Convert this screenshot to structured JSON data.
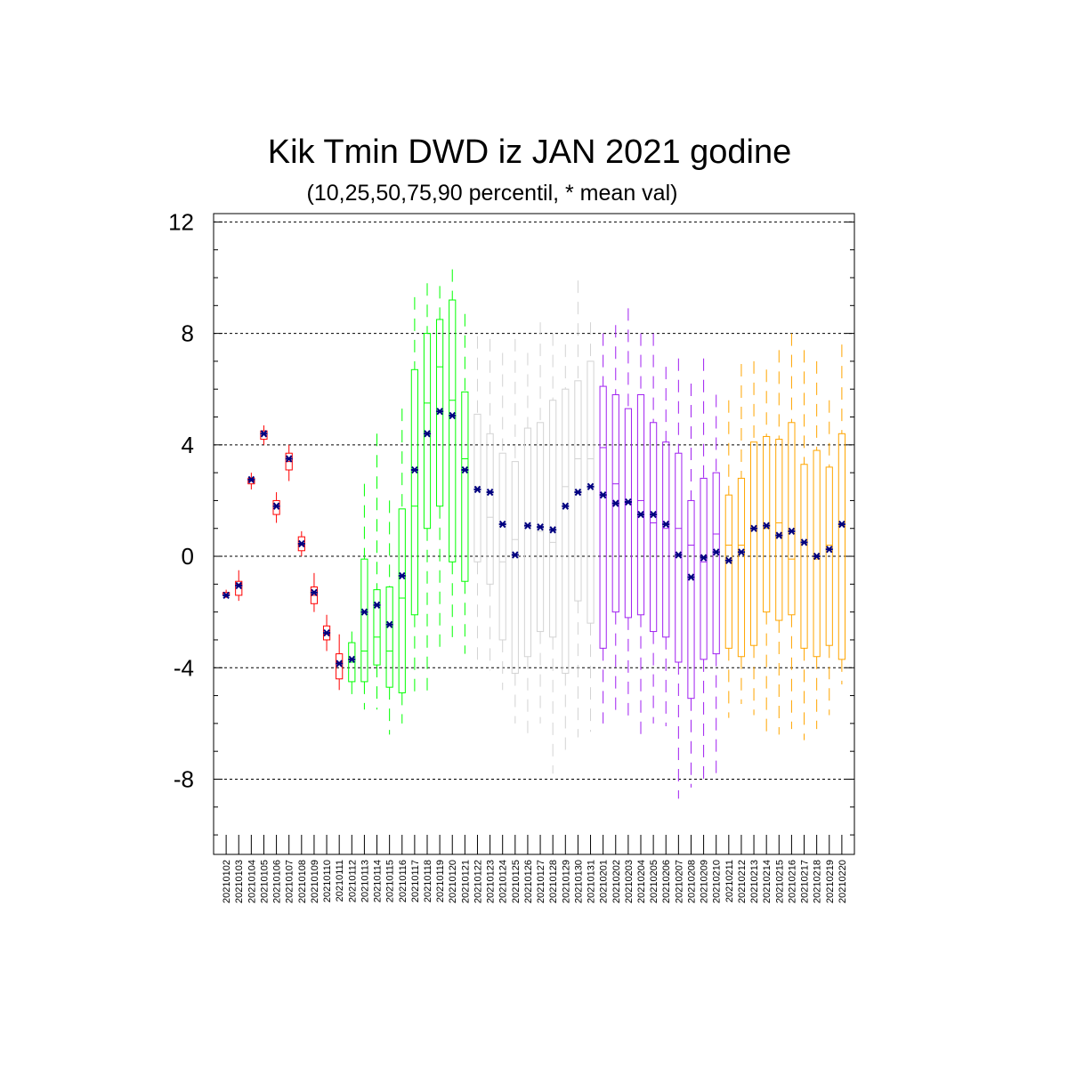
{
  "chart_data": {
    "type": "boxplot",
    "title": "Kik Tmin DWD iz JAN 2021 godine",
    "subtitle": "(10,25,50,75,90 percentil, * mean val)",
    "xlabel": "",
    "ylabel": "",
    "ylim": [
      -10.7,
      12.3
    ],
    "yticks": [
      -8,
      -4,
      0,
      4,
      8,
      12
    ],
    "grid": "horizontal dashed at major ticks",
    "colors": {
      "group1": "#ff0000",
      "group2": "#00ff00",
      "group3": "#d3d3d3",
      "group4": "#a020f0",
      "group5": "#ffa500",
      "mean_marker": "#000080"
    },
    "categories": [
      "20210102",
      "20210103",
      "20210104",
      "20210105",
      "20210106",
      "20210107",
      "20210108",
      "20210109",
      "20210110",
      "20210111",
      "20210112",
      "20210113",
      "20210114",
      "20210115",
      "20210116",
      "20210117",
      "20210118",
      "20210119",
      "20210120",
      "20210121",
      "20210122",
      "20210123",
      "20210124",
      "20210125",
      "20210126",
      "20210127",
      "20210128",
      "20210129",
      "20210130",
      "20210131",
      "20210201",
      "20210202",
      "20210203",
      "20210204",
      "20210205",
      "20210206",
      "20210207",
      "20210208",
      "20210209",
      "20210210",
      "20210211",
      "20210212",
      "20210213",
      "20210214",
      "20210215",
      "20210216",
      "20210217",
      "20210218",
      "20210219",
      "20210220"
    ],
    "groups": [
      1,
      1,
      1,
      1,
      1,
      1,
      1,
      1,
      1,
      1,
      2,
      2,
      2,
      2,
      2,
      2,
      2,
      2,
      2,
      2,
      3,
      3,
      3,
      3,
      3,
      3,
      3,
      3,
      3,
      3,
      4,
      4,
      4,
      4,
      4,
      4,
      4,
      4,
      4,
      4,
      5,
      5,
      5,
      5,
      5,
      5,
      5,
      5,
      5,
      5
    ],
    "p10": [
      -1.5,
      -1.6,
      2.4,
      4.0,
      1.2,
      2.7,
      0.0,
      -2.0,
      -3.4,
      -4.8,
      -5.0,
      -5.5,
      -5.5,
      -6.4,
      -6.0,
      -4.9,
      -4.9,
      -3.5,
      -2.9,
      -3.5,
      -3.9,
      -4.1,
      -4.8,
      -6.0,
      -6.4,
      -6.0,
      -7.8,
      -7.2,
      -6.5,
      -6.3,
      -6.0,
      -5.7,
      -5.8,
      -6.5,
      -6.0,
      -6.1,
      -8.7,
      -8.3,
      -8.0,
      -7.8,
      -5.8,
      -5.3,
      -5.7,
      -6.5,
      -6.4,
      -6.2,
      -6.6,
      -6.2,
      -5.7,
      -4.6
    ],
    "p25": [
      -1.4,
      -1.4,
      2.6,
      4.2,
      1.5,
      3.1,
      0.2,
      -1.7,
      -3.0,
      -4.4,
      -4.5,
      -4.5,
      -3.9,
      -4.7,
      -4.9,
      -2.1,
      1.0,
      1.8,
      -0.2,
      -0.9,
      -0.2,
      -1.0,
      -3.0,
      -4.2,
      -3.6,
      -2.7,
      -2.9,
      -4.2,
      -1.6,
      -2.4,
      -3.3,
      -2.0,
      -2.2,
      -2.1,
      -2.7,
      -2.9,
      -3.8,
      -5.1,
      -3.7,
      -3.5,
      -3.3,
      -3.6,
      -3.2,
      -2.0,
      -2.3,
      -2.1,
      -3.3,
      -3.6,
      -3.2,
      -3.7
    ],
    "p50": [
      -1.4,
      -1.0,
      2.7,
      4.4,
      1.8,
      3.4,
      0.4,
      -1.4,
      -2.8,
      -3.8,
      -3.8,
      -3.4,
      -2.9,
      -3.4,
      -1.5,
      1.8,
      5.5,
      6.8,
      5.6,
      3.5,
      2.5,
      1.4,
      -0.2,
      0.6,
      1.1,
      0.9,
      0.5,
      2.5,
      3.5,
      3.5,
      3.9,
      2.6,
      1.9,
      2.0,
      1.2,
      1.0,
      1.0,
      0.4,
      -0.2,
      0.8,
      0.4,
      0.4,
      1.0,
      1.0,
      1.2,
      -0.1,
      0.5,
      -0.1,
      0.4,
      1.1
    ],
    "p75": [
      -1.3,
      -0.9,
      2.8,
      4.5,
      2.0,
      3.7,
      0.7,
      -1.1,
      -2.5,
      -3.5,
      -3.1,
      -0.1,
      -1.2,
      -1.1,
      1.7,
      6.7,
      8.0,
      8.5,
      9.2,
      5.9,
      5.1,
      4.4,
      3.7,
      3.4,
      4.6,
      4.8,
      5.6,
      6.0,
      6.3,
      7.0,
      6.1,
      5.8,
      5.3,
      5.8,
      4.8,
      4.1,
      3.7,
      2.0,
      2.8,
      3.0,
      2.2,
      2.8,
      4.1,
      4.3,
      4.2,
      4.8,
      3.3,
      3.8,
      3.2,
      4.4
    ],
    "p90": [
      -1.2,
      -0.5,
      3.0,
      4.7,
      2.3,
      4.0,
      0.9,
      -0.6,
      -2.1,
      -2.8,
      -2.7,
      2.6,
      4.4,
      2.0,
      5.3,
      9.3,
      9.8,
      9.7,
      10.3,
      8.7,
      7.9,
      7.8,
      7.3,
      7.8,
      7.3,
      8.4,
      8.0,
      7.6,
      9.9,
      8.4,
      8.0,
      8.3,
      8.9,
      8.0,
      8.0,
      6.8,
      7.1,
      6.2,
      7.1,
      5.8,
      5.6,
      6.9,
      7.0,
      6.7,
      7.4,
      8.0,
      7.4,
      7.0,
      5.6,
      7.6
    ],
    "mean": [
      -1.4,
      -1.05,
      2.75,
      4.4,
      1.8,
      3.5,
      0.45,
      -1.3,
      -2.75,
      -3.85,
      -3.7,
      -2.0,
      -1.75,
      -2.45,
      -0.7,
      3.1,
      4.4,
      5.2,
      5.05,
      3.1,
      2.4,
      2.3,
      1.15,
      0.05,
      1.1,
      1.05,
      0.95,
      1.8,
      2.3,
      2.5,
      2.2,
      1.9,
      1.95,
      1.5,
      1.5,
      1.15,
      0.05,
      -0.75,
      -0.05,
      0.15,
      -0.15,
      0.15,
      1.0,
      1.1,
      0.75,
      0.9,
      0.5,
      0.0,
      0.25,
      1.15
    ]
  }
}
